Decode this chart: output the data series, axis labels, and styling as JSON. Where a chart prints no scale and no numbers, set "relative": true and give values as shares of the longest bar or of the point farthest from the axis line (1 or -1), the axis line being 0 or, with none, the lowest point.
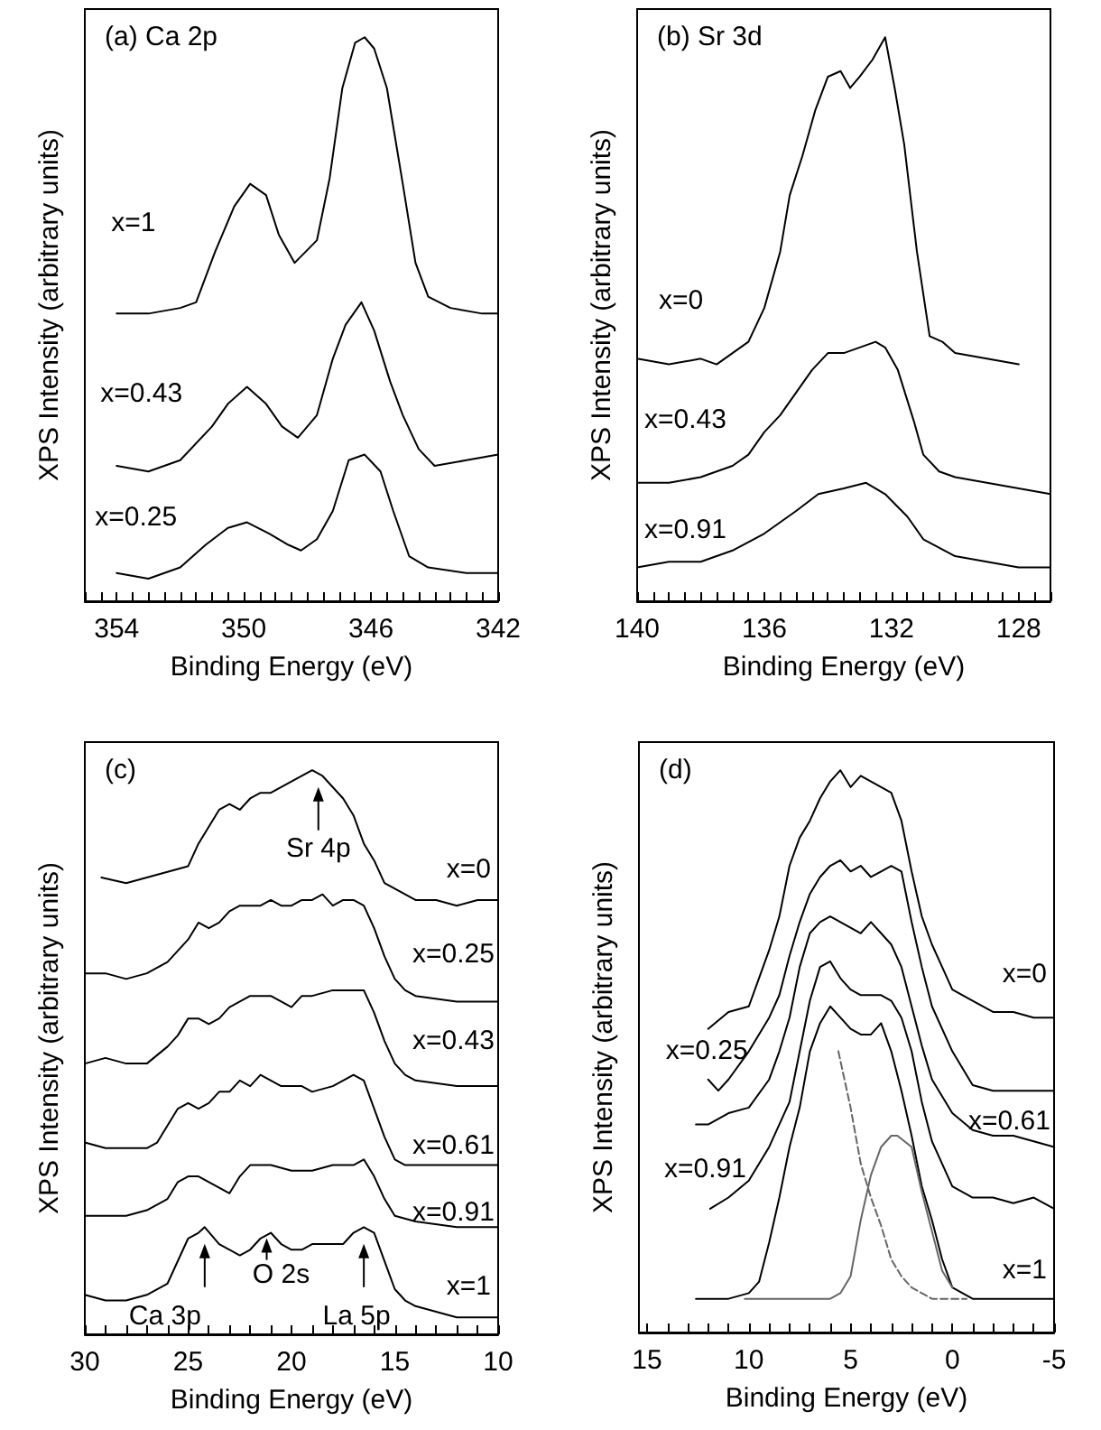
{
  "chart_data": [
    {
      "type": "line",
      "title": "(a) Ca 2p",
      "xlabel": "Binding Energy (eV)",
      "ylabel": "XPS Intensity (arbitrary units)",
      "relative": true,
      "tick_labels": "x",
      "xlim": [
        355,
        342
      ],
      "xticks": [
        {
          "value": 355,
          "label": null
        },
        {
          "value": 354.5,
          "label": null
        },
        354,
        {
          "value": 353.5,
          "label": null
        },
        {
          "value": 353,
          "label": null
        },
        {
          "value": 352.5,
          "label": null
        },
        {
          "value": 352,
          "label": null
        },
        {
          "value": 351.5,
          "label": null
        },
        {
          "value": 351,
          "label": null
        },
        {
          "value": 350.5,
          "label": null
        },
        350,
        {
          "value": 349.5,
          "label": null
        },
        {
          "value": 349,
          "label": null
        },
        {
          "value": 348.5,
          "label": null
        },
        {
          "value": 348,
          "label": null
        },
        {
          "value": 347.5,
          "label": null
        },
        {
          "value": 347,
          "label": null
        },
        {
          "value": 346.5,
          "label": null
        },
        346,
        {
          "value": 345.5,
          "label": null
        },
        {
          "value": 345,
          "label": null
        },
        {
          "value": 344.5,
          "label": null
        },
        {
          "value": 344,
          "label": null
        },
        {
          "value": 343.5,
          "label": null
        },
        {
          "value": 343,
          "label": null
        },
        {
          "value": 342.5,
          "label": null
        },
        342
      ],
      "series": [
        {
          "name": "x=1",
          "color": "#000000",
          "x": [
            354,
            353,
            352,
            351.5,
            350.9,
            350.3,
            349.8,
            349.3,
            348.9,
            348.4,
            347.7,
            347.3,
            346.9,
            346.5,
            346.2,
            345.9,
            345.5,
            345,
            344.6,
            344.2,
            343.5,
            342.5,
            342
          ],
          "values": [
            0.51,
            0.51,
            0.52,
            0.53,
            0.62,
            0.7,
            0.74,
            0.72,
            0.65,
            0.6,
            0.64,
            0.75,
            0.91,
            0.99,
            1,
            0.98,
            0.91,
            0.74,
            0.6,
            0.54,
            0.52,
            0.51,
            0.51
          ]
        },
        {
          "name": "x=0.43",
          "color": "#000000",
          "x": [
            354,
            353,
            352,
            351,
            350.5,
            349.9,
            349.3,
            348.8,
            348.3,
            347.7,
            347.2,
            346.8,
            346.3,
            345.9,
            345.4,
            345,
            344.5,
            344,
            343,
            342
          ],
          "values": [
            0.24,
            0.23,
            0.25,
            0.31,
            0.35,
            0.38,
            0.35,
            0.31,
            0.29,
            0.33,
            0.43,
            0.49,
            0.53,
            0.48,
            0.39,
            0.33,
            0.27,
            0.24,
            0.25,
            0.26
          ]
        },
        {
          "name": "x=0.25",
          "color": "#000000",
          "x": [
            354,
            353,
            352,
            351.2,
            350.5,
            349.9,
            349.2,
            348.6,
            348.2,
            347.7,
            347.2,
            346.7,
            346.2,
            345.7,
            345.3,
            344.8,
            344.2,
            343,
            342
          ],
          "values": [
            0.05,
            0.04,
            0.06,
            0.1,
            0.13,
            0.14,
            0.12,
            0.1,
            0.09,
            0.11,
            0.16,
            0.25,
            0.26,
            0.23,
            0.16,
            0.08,
            0.06,
            0.05,
            0.05
          ]
        }
      ]
    },
    {
      "type": "line",
      "title": "(b) Sr 3d",
      "xlabel": "Binding Energy (eV)",
      "ylabel": "XPS Intensity (arbitrary units)",
      "relative": true,
      "tick_labels": "x",
      "xlim": [
        140,
        127
      ],
      "xticks": [
        140,
        {
          "value": 139.5,
          "label": null
        },
        {
          "value": 139,
          "label": null
        },
        {
          "value": 138.5,
          "label": null
        },
        {
          "value": 138,
          "label": null
        },
        {
          "value": 137.5,
          "label": null
        },
        {
          "value": 137,
          "label": null
        },
        {
          "value": 136.5,
          "label": null
        },
        136,
        {
          "value": 135.5,
          "label": null
        },
        {
          "value": 135,
          "label": null
        },
        {
          "value": 134.5,
          "label": null
        },
        {
          "value": 134,
          "label": null
        },
        {
          "value": 133.5,
          "label": null
        },
        {
          "value": 133,
          "label": null
        },
        {
          "value": 132.5,
          "label": null
        },
        132,
        {
          "value": 131.5,
          "label": null
        },
        {
          "value": 131,
          "label": null
        },
        {
          "value": 130.5,
          "label": null
        },
        {
          "value": 130,
          "label": null
        },
        {
          "value": 129.5,
          "label": null
        },
        {
          "value": 129,
          "label": null
        },
        {
          "value": 128.5,
          "label": null
        },
        128,
        {
          "value": 127.5,
          "label": null
        },
        {
          "value": 127,
          "label": null
        }
      ],
      "series": [
        {
          "name": "x=0",
          "color": "#000000",
          "x": [
            140,
            139,
            138,
            137.5,
            137,
            136.5,
            136,
            135.5,
            135.2,
            134.8,
            134.4,
            134,
            133.6,
            133.3,
            133,
            132.6,
            132.2,
            131.9,
            131.6,
            131.2,
            130.8,
            130.4,
            130,
            129,
            128
          ],
          "values": [
            0.43,
            0.42,
            0.43,
            0.42,
            0.44,
            0.46,
            0.52,
            0.62,
            0.72,
            0.79,
            0.87,
            0.93,
            0.94,
            0.91,
            0.93,
            0.96,
            1,
            0.91,
            0.81,
            0.62,
            0.47,
            0.46,
            0.44,
            0.43,
            0.42
          ]
        },
        {
          "name": "x=0.43",
          "color": "#000000",
          "x": [
            140,
            139,
            138,
            137,
            136.5,
            136,
            135.5,
            135,
            134.5,
            134,
            133.5,
            133,
            132.5,
            132.2,
            131.8,
            131.3,
            131,
            130.5,
            130,
            129,
            128,
            127
          ],
          "values": [
            0.21,
            0.21,
            0.22,
            0.24,
            0.26,
            0.3,
            0.33,
            0.37,
            0.41,
            0.44,
            0.44,
            0.45,
            0.46,
            0.45,
            0.41,
            0.32,
            0.26,
            0.23,
            0.22,
            0.21,
            0.2,
            0.19
          ]
        },
        {
          "name": "x=0.91",
          "color": "#000000",
          "x": [
            140,
            139,
            138,
            137,
            136,
            135.5,
            135,
            134.3,
            133.5,
            132.8,
            132.2,
            131.5,
            131,
            130,
            129,
            128,
            127
          ],
          "values": [
            0.06,
            0.07,
            0.07,
            0.09,
            0.12,
            0.14,
            0.16,
            0.19,
            0.2,
            0.21,
            0.19,
            0.15,
            0.11,
            0.08,
            0.07,
            0.06,
            0.06
          ]
        }
      ]
    },
    {
      "type": "line",
      "title": "(c)",
      "xlabel": "Binding Energy (eV)",
      "ylabel": "XPS Intensity (arbitrary units)",
      "relative": true,
      "tick_labels": "x",
      "xlim": [
        30,
        10
      ],
      "xticks": [
        30,
        {
          "value": 29,
          "label": null
        },
        {
          "value": 28,
          "label": null
        },
        {
          "value": 27,
          "label": null
        },
        {
          "value": 26,
          "label": null
        },
        25,
        {
          "value": 24,
          "label": null
        },
        {
          "value": 23,
          "label": null
        },
        {
          "value": 22,
          "label": null
        },
        {
          "value": 21,
          "label": null
        },
        20,
        {
          "value": 19,
          "label": null
        },
        {
          "value": 18,
          "label": null
        },
        {
          "value": 17,
          "label": null
        },
        {
          "value": 16,
          "label": null
        },
        15,
        {
          "value": 14,
          "label": null
        },
        {
          "value": 13,
          "label": null
        },
        {
          "value": 12,
          "label": null
        },
        {
          "value": 11,
          "label": null
        },
        10
      ],
      "annotations": [
        {
          "text": "Sr 4p",
          "x": 18.7,
          "y": 0.98
        },
        {
          "text": "Ca 3p",
          "x": 24.2,
          "y": 0.17
        },
        {
          "text": "O 2s",
          "x": 21.2,
          "y": 0.18
        },
        {
          "text": "La 5p",
          "x": 16.5,
          "y": 0.17
        }
      ],
      "series": [
        {
          "name": "x=0",
          "color": "#000000",
          "x": [
            29.2,
            28,
            27,
            26,
            25,
            24.5,
            24,
            23.5,
            23,
            22.5,
            22,
            21.5,
            21,
            20.5,
            20,
            19.5,
            19,
            18.5,
            18,
            17.5,
            17,
            16.5,
            16,
            15.5,
            15,
            14,
            13,
            12,
            11,
            10
          ],
          "values": [
            0.81,
            0.8,
            0.81,
            0.82,
            0.83,
            0.87,
            0.9,
            0.93,
            0.94,
            0.93,
            0.95,
            0.96,
            0.96,
            0.97,
            0.98,
            0.99,
            1,
            0.99,
            0.97,
            0.95,
            0.92,
            0.87,
            0.84,
            0.8,
            0.79,
            0.77,
            0.77,
            0.76,
            0.77,
            0.77
          ]
        },
        {
          "name": "x=0.25",
          "color": "#000000",
          "x": [
            30,
            29,
            28,
            27,
            26,
            25,
            24.5,
            24,
            23.5,
            23,
            22.5,
            22,
            21.5,
            21,
            20.5,
            20,
            19.5,
            19,
            18.5,
            18,
            17.5,
            17,
            16.5,
            16,
            15.5,
            15,
            14.5,
            14,
            12,
            10
          ],
          "values": [
            0.64,
            0.64,
            0.63,
            0.64,
            0.66,
            0.7,
            0.73,
            0.72,
            0.73,
            0.75,
            0.76,
            0.76,
            0.76,
            0.77,
            0.76,
            0.76,
            0.77,
            0.77,
            0.78,
            0.76,
            0.77,
            0.77,
            0.76,
            0.72,
            0.67,
            0.63,
            0.61,
            0.6,
            0.59,
            0.59
          ]
        },
        {
          "name": "x=0.43",
          "color": "#000000",
          "x": [
            30,
            29,
            28,
            27,
            26,
            25.5,
            25,
            24.5,
            24,
            23.5,
            23,
            22,
            21.5,
            21,
            20.5,
            20,
            19.5,
            19,
            18,
            17,
            16.5,
            16,
            15.5,
            15,
            14.5,
            14,
            12,
            10
          ],
          "values": [
            0.48,
            0.49,
            0.48,
            0.48,
            0.51,
            0.53,
            0.56,
            0.56,
            0.55,
            0.56,
            0.58,
            0.6,
            0.6,
            0.6,
            0.59,
            0.58,
            0.6,
            0.6,
            0.61,
            0.61,
            0.61,
            0.57,
            0.52,
            0.48,
            0.46,
            0.45,
            0.44,
            0.44
          ]
        },
        {
          "name": "x=0.61",
          "color": "#000000",
          "x": [
            30,
            29,
            28,
            27,
            26.5,
            26,
            25.5,
            25,
            24.5,
            24,
            23.5,
            23,
            22.5,
            22,
            21.5,
            21,
            20.5,
            20,
            19.5,
            19,
            18,
            17.5,
            17,
            16.5,
            16,
            15.5,
            15,
            14.5,
            14,
            12,
            10
          ],
          "values": [
            0.34,
            0.33,
            0.33,
            0.33,
            0.34,
            0.37,
            0.4,
            0.41,
            0.4,
            0.41,
            0.43,
            0.43,
            0.45,
            0.44,
            0.46,
            0.45,
            0.44,
            0.44,
            0.44,
            0.43,
            0.44,
            0.45,
            0.46,
            0.45,
            0.4,
            0.35,
            0.31,
            0.3,
            0.3,
            0.3,
            0.3
          ]
        },
        {
          "name": "x=0.91",
          "color": "#000000",
          "x": [
            30,
            29,
            28,
            27,
            26,
            25.5,
            25,
            24.5,
            24,
            23.5,
            23,
            22.5,
            22,
            21.5,
            21,
            20,
            19,
            18,
            17,
            16.5,
            16,
            15.5,
            15,
            14,
            12,
            10
          ],
          "values": [
            0.21,
            0.21,
            0.21,
            0.22,
            0.24,
            0.27,
            0.28,
            0.28,
            0.27,
            0.26,
            0.25,
            0.28,
            0.3,
            0.3,
            0.3,
            0.29,
            0.29,
            0.3,
            0.3,
            0.31,
            0.28,
            0.24,
            0.21,
            0.2,
            0.19,
            0.19
          ]
        },
        {
          "name": "x=1",
          "color": "#000000",
          "x": [
            30,
            29,
            28,
            27,
            26,
            25.5,
            25,
            24.5,
            24.2,
            23.5,
            23,
            22.5,
            22,
            21.5,
            21,
            20.5,
            20,
            19.5,
            19,
            18,
            17.5,
            17,
            16.5,
            16,
            15.5,
            15,
            14.5,
            14,
            12,
            10
          ],
          "values": [
            0.07,
            0.06,
            0.06,
            0.07,
            0.09,
            0.13,
            0.17,
            0.18,
            0.19,
            0.16,
            0.15,
            0.14,
            0.15,
            0.17,
            0.18,
            0.16,
            0.15,
            0.15,
            0.16,
            0.16,
            0.16,
            0.18,
            0.19,
            0.18,
            0.13,
            0.08,
            0.06,
            0.05,
            0.03,
            0.03
          ]
        }
      ]
    },
    {
      "type": "line",
      "title": "(d)",
      "xlabel": "Binding Energy (eV)",
      "ylabel": "XPS Intensity (arbitrary units)",
      "relative": true,
      "tick_labels": "x",
      "xlim": [
        15.4,
        -5
      ],
      "xticks": [
        15,
        {
          "value": 14,
          "label": null
        },
        {
          "value": 13,
          "label": null
        },
        {
          "value": 12,
          "label": null
        },
        {
          "value": 11,
          "label": null
        },
        10,
        {
          "value": 9,
          "label": null
        },
        {
          "value": 8,
          "label": null
        },
        {
          "value": 7,
          "label": null
        },
        {
          "value": 6,
          "label": null
        },
        5,
        {
          "value": 4,
          "label": null
        },
        {
          "value": 3,
          "label": null
        },
        {
          "value": 2,
          "label": null
        },
        {
          "value": 1,
          "label": null
        },
        0,
        {
          "value": -1,
          "label": null
        },
        {
          "value": -2,
          "label": null
        },
        {
          "value": -3,
          "label": null
        },
        {
          "value": -4,
          "label": null
        },
        -5
      ],
      "series": [
        {
          "name": "x=0",
          "color": "#000000",
          "x": [
            12,
            11,
            10,
            9.5,
            9,
            8.5,
            8,
            7.5,
            7,
            6.5,
            6,
            5.5,
            5,
            4.5,
            4,
            3.5,
            3,
            2.5,
            2,
            1.5,
            1,
            0.5,
            0,
            -1,
            -2,
            -3,
            -4,
            -5
          ],
          "values": [
            0.54,
            0.57,
            0.58,
            0.63,
            0.68,
            0.74,
            0.83,
            0.88,
            0.91,
            0.95,
            0.98,
            1,
            0.97,
            0.99,
            0.98,
            0.97,
            0.96,
            0.91,
            0.82,
            0.74,
            0.69,
            0.65,
            0.61,
            0.59,
            0.57,
            0.57,
            0.56,
            0.56
          ]
        },
        {
          "name": "x=0.25",
          "color": "#000000",
          "x": [
            12,
            11.5,
            11,
            10,
            9,
            8.5,
            8,
            7.5,
            7,
            6.5,
            6,
            5.5,
            5,
            4.5,
            4,
            3.5,
            3,
            2.5,
            2,
            1.5,
            1,
            0,
            -0.5,
            -1,
            -2,
            -3,
            -4,
            -5
          ],
          "values": [
            0.45,
            0.43,
            0.45,
            0.5,
            0.56,
            0.6,
            0.67,
            0.73,
            0.78,
            0.81,
            0.83,
            0.84,
            0.82,
            0.83,
            0.81,
            0.82,
            0.83,
            0.82,
            0.73,
            0.65,
            0.58,
            0.5,
            0.47,
            0.44,
            0.43,
            0.43,
            0.43,
            0.43
          ]
        },
        {
          "name": "x=0.61",
          "color": "#000000",
          "x": [
            12.6,
            12,
            11,
            10,
            9,
            8.5,
            8,
            7.5,
            7,
            6.5,
            6,
            5.5,
            5,
            4.5,
            4,
            3.5,
            3,
            2.5,
            2,
            1.5,
            1,
            0,
            -1,
            -2,
            -3,
            -4,
            -5
          ],
          "values": [
            0.37,
            0.37,
            0.39,
            0.4,
            0.45,
            0.5,
            0.56,
            0.65,
            0.71,
            0.73,
            0.74,
            0.73,
            0.72,
            0.71,
            0.73,
            0.71,
            0.69,
            0.65,
            0.58,
            0.51,
            0.45,
            0.39,
            0.36,
            0.35,
            0.35,
            0.34,
            0.33
          ]
        },
        {
          "name": "x=0.91",
          "color": "#000000",
          "x": [
            11.9,
            11,
            10,
            9,
            8,
            7.5,
            7,
            6.5,
            6,
            5.5,
            5,
            4.5,
            4,
            3.5,
            3,
            2.5,
            2,
            1.5,
            1,
            0,
            -1,
            -2,
            -3,
            -4,
            -5
          ],
          "values": [
            0.22,
            0.24,
            0.27,
            0.33,
            0.41,
            0.5,
            0.59,
            0.65,
            0.66,
            0.63,
            0.61,
            0.6,
            0.6,
            0.6,
            0.59,
            0.56,
            0.5,
            0.41,
            0.34,
            0.26,
            0.24,
            0.24,
            0.23,
            0.24,
            0.22
          ]
        },
        {
          "name": "x=1",
          "color": "#000000",
          "x": [
            12.6,
            11,
            10,
            9.5,
            9,
            8.5,
            8,
            7.5,
            7,
            6.5,
            6,
            5.5,
            5,
            4.5,
            4,
            3.5,
            3,
            2.5,
            2,
            1.5,
            1,
            0.5,
            0,
            -1,
            -3,
            -5
          ],
          "values": [
            0.06,
            0.06,
            0.07,
            0.09,
            0.16,
            0.24,
            0.33,
            0.4,
            0.5,
            0.55,
            0.58,
            0.56,
            0.54,
            0.53,
            0.53,
            0.55,
            0.5,
            0.43,
            0.35,
            0.26,
            0.2,
            0.13,
            0.08,
            0.06,
            0.06,
            0.06
          ]
        },
        {
          "color": "#666666",
          "x": [
            10.2,
            8,
            6,
            5.5,
            5,
            4.5,
            4,
            3.5,
            3,
            2.7,
            2,
            1.5,
            1,
            0.5,
            0
          ],
          "values": [
            0.06,
            0.06,
            0.06,
            0.07,
            0.1,
            0.2,
            0.28,
            0.33,
            0.35,
            0.35,
            0.33,
            0.25,
            0.18,
            0.11,
            0.08
          ]
        },
        {
          "color": "#666666",
          "line_style": "dashed",
          "x": [
            5.6,
            5,
            4.5,
            4,
            3.5,
            3,
            2.5,
            2,
            1,
            0,
            -0.7
          ],
          "values": [
            0.5,
            0.4,
            0.3,
            0.24,
            0.19,
            0.13,
            0.1,
            0.08,
            0.06,
            0.06,
            0.06
          ]
        }
      ]
    }
  ]
}
